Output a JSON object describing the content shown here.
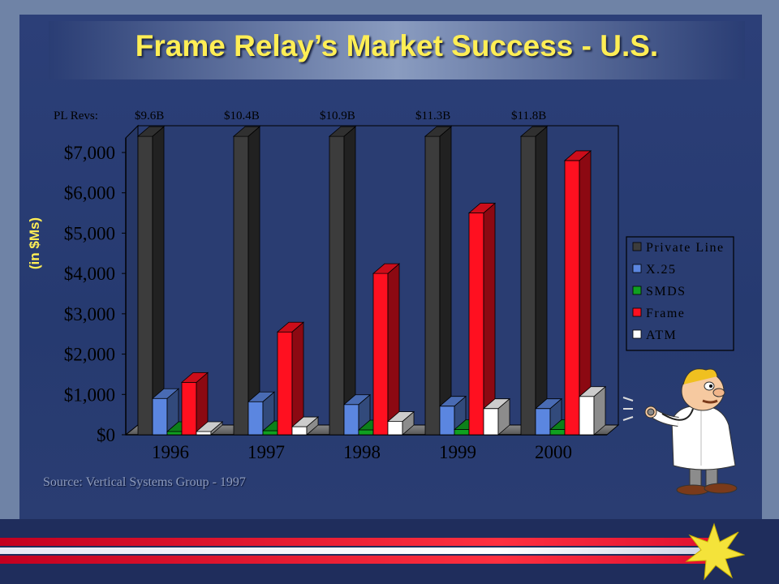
{
  "slide": {
    "title": "Frame Relay’s Market Success - U.S.",
    "source_note": "Source: Vertical Systems Group - 1997"
  },
  "chart_data": {
    "type": "bar",
    "title": "Frame Relay’s Market Success - U.S.",
    "ylabel": "(in $Ms)",
    "xlabel": "",
    "categories": [
      "1996",
      "1997",
      "1998",
      "1999",
      "2000"
    ],
    "series": [
      {
        "name": "Private Line",
        "values": [
          7400,
          7400,
          7400,
          7400,
          7400
        ],
        "color": "#3c3c3c"
      },
      {
        "name": "X.25",
        "values": [
          900,
          820,
          750,
          710,
          650
        ],
        "color": "#5b86e0"
      },
      {
        "name": "SMDS",
        "values": [
          80,
          100,
          120,
          130,
          130
        ],
        "color": "#10a020"
      },
      {
        "name": "Frame",
        "values": [
          1300,
          2550,
          4000,
          5500,
          6800
        ],
        "color": "#ff1020"
      },
      {
        "name": "ATM",
        "values": [
          80,
          200,
          330,
          650,
          950
        ],
        "color": "#ffffff"
      }
    ],
    "y_ticks": [
      "$0",
      "$1,000",
      "$2,000",
      "$3,000",
      "$4,000",
      "$5,000",
      "$6,000",
      "$7,000"
    ],
    "y_tick_values": [
      0,
      1000,
      2000,
      3000,
      4000,
      5000,
      6000,
      7000
    ],
    "ylim": [
      0,
      7400
    ],
    "top_labels": {
      "prefix": "PL Revs:",
      "values": [
        "$9.6B",
        "$10.4B",
        "$10.9B",
        "$11.3B",
        "$11.8B"
      ]
    },
    "legend_placement": "right",
    "grid": false
  }
}
